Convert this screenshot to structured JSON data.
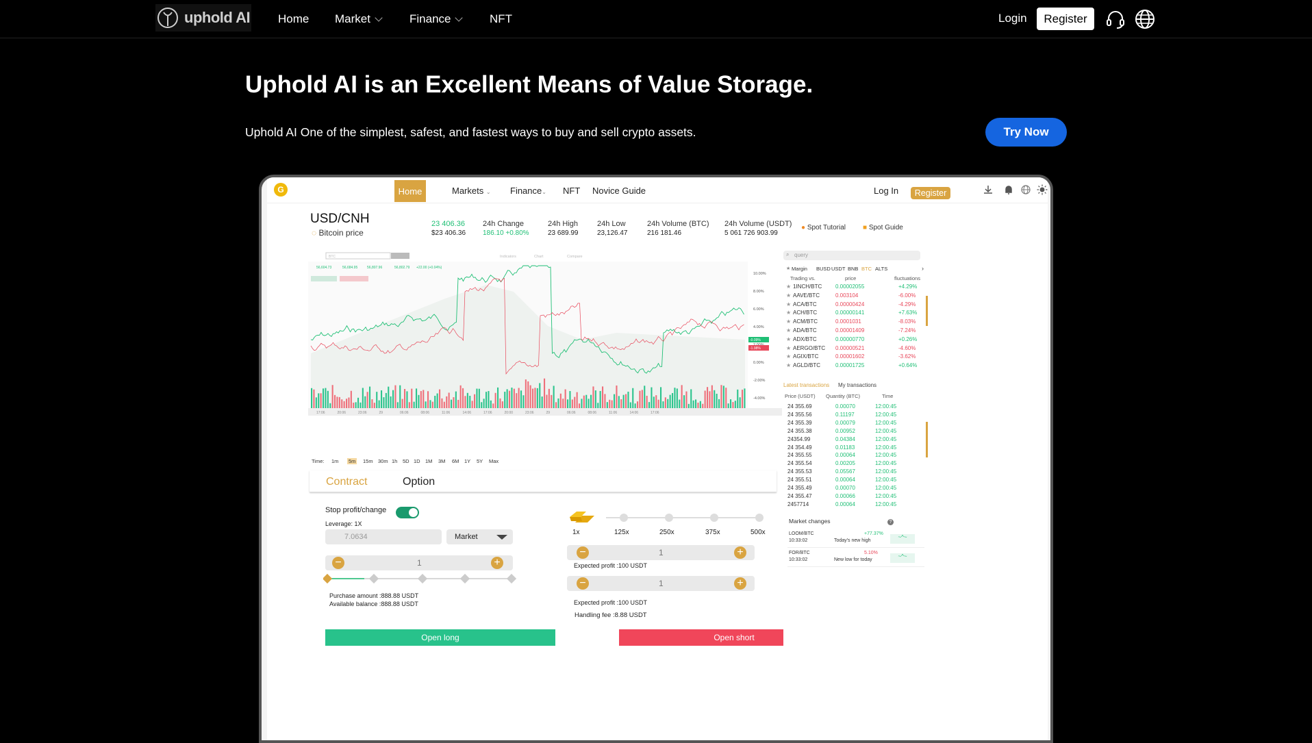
{
  "header": {
    "logo_text": "uphold AI",
    "nav": [
      {
        "label": "Home"
      },
      {
        "label": "Market"
      },
      {
        "label": "Finance"
      },
      {
        "label": "NFT"
      }
    ],
    "login": "Login",
    "register": "Register"
  },
  "hero": {
    "title": "Uphold AI is an Excellent Means of Value Storage.",
    "subtitle": "Uphold AI One of the simplest, safest, and fastest ways to buy and sell crypto assets.",
    "cta": "Try Now"
  },
  "mock": {
    "nav": {
      "coin": "G",
      "home": "Home",
      "markets": "Markets",
      "finance": "Finance",
      "nft": "NFT",
      "novice": "Novice Guide",
      "login": "Log In",
      "register": "Register"
    },
    "ticker": {
      "pair": "USD/CNH",
      "sub": "Bitcoin price",
      "price": "23 406.36",
      "price_sub": "$23 406.36",
      "change_label": "24h Change",
      "change_value": "186.10 +0.80%",
      "high_label": "24h High",
      "high_value": "23 689.99",
      "low_label": "24h Low",
      "low_value": "23,126.47",
      "vol_btc_label": "24h Volume (BTC)",
      "vol_btc_value": "216 181.46",
      "vol_usdt_label": "24h Volume (USDT)",
      "vol_usdt_value": "5 061 726 903.99",
      "spot_tutorial": "Spot Tutorial",
      "spot_guide": "Spot Guide"
    },
    "chart": {
      "y_ticks": [
        "10.00%",
        "8.00%",
        "6.00%",
        "4.00%",
        "2.00%",
        "0.00%",
        "-2.00%",
        "-4.00%"
      ],
      "x_ticks": [
        "17:06",
        "20:06",
        "23:06",
        "29",
        "06:06",
        "08:06",
        "11:06",
        "14:06",
        "17:06",
        "20:00",
        "23:06",
        "29",
        "06:06",
        "08:06",
        "11:06",
        "14:06",
        "17:06"
      ],
      "tag_up": "-0.09%",
      "tag_down": "-1.98%",
      "top_label_1": "BTC",
      "indicators": "Indicators",
      "chart": "Chart",
      "compare": "Compare",
      "legend_values": [
        "56,604.73",
        "56,684.95",
        "56,807.96",
        "56,802.79",
        "+22.00 (+0.04%)"
      ]
    },
    "time_buttons": [
      "Time:",
      "1m",
      "5m",
      "15m",
      "30m",
      "1h",
      "5D",
      "1D",
      "1M",
      "3M",
      "6M",
      "1Y",
      "5Y",
      "Max"
    ],
    "tabs": {
      "contract": "Contract",
      "option": "Option"
    },
    "left_form": {
      "stop": "Stop profit/change",
      "leverage": "Leverage: 1X",
      "price_placeholder": "7.0634",
      "order_type": "Market",
      "qty": "1",
      "purchase": "Purchase amount :888.88 USDT",
      "available": "Available balance :888.88 USDT",
      "open_long": "Open long"
    },
    "right_form": {
      "leverage_ticks": [
        "1x",
        "125x",
        "250x",
        "375x",
        "500x"
      ],
      "qty1": "1",
      "expected1": "Expected profit :100 USDT",
      "qty2": "1",
      "expected2": "Expected profit :100 USDT",
      "fee": "Handling fee :8.88 USDT",
      "open_short": "Open short"
    },
    "market_panel": {
      "search_placeholder": "query",
      "filters": [
        "Margin",
        "BUSD",
        "USDT",
        "BNB",
        "BTC",
        "ALTS"
      ],
      "headers": [
        "Trading vs.",
        "price",
        "fluctuations"
      ],
      "pairs": [
        {
          "pair": "1INCH/BTC",
          "price": "0.00002055",
          "change": "+4.29%",
          "up": true
        },
        {
          "pair": "AAVE/BTC",
          "price": "0.003104",
          "change": "-6.00%",
          "up": false
        },
        {
          "pair": "ACA/BTC",
          "price": "0.00000424",
          "change": "-4.29%",
          "up": false
        },
        {
          "pair": "ACH/BTC",
          "price": "0.00000141",
          "change": "+7.63%",
          "up": true
        },
        {
          "pair": "ACM/BTC",
          "price": "0.0001031",
          "change": "-8.03%",
          "up": false
        },
        {
          "pair": "ADA/BTC",
          "price": "0.00001409",
          "change": "-7.24%",
          "up": false
        },
        {
          "pair": "ADX/BTC",
          "price": "0.00000770",
          "change": "+0.26%",
          "up": true
        },
        {
          "pair": "AERGO/BTC",
          "price": "0.00000521",
          "change": "-4.60%",
          "up": false
        },
        {
          "pair": "AGIX/BTC",
          "price": "0.00001602",
          "change": "-3.62%",
          "up": false
        },
        {
          "pair": "AGLD/BTC",
          "price": "0.00001725",
          "change": "+0.64%",
          "up": true
        }
      ],
      "tx_tabs": [
        "Latest transactions",
        "My transactions"
      ],
      "tx_headers": [
        "Price (USDT)",
        "Quantity (BTC)",
        "Time"
      ],
      "transactions": [
        {
          "price": "24 355.69",
          "qty": "0.00070",
          "time": "12:00:45"
        },
        {
          "price": "24 355.56",
          "qty": "0.11197",
          "time": "12:00:45"
        },
        {
          "price": "24 355.39",
          "qty": "0.00079",
          "time": "12:00:45"
        },
        {
          "price": "24 355.38",
          "qty": "0.00952",
          "time": "12:00:45"
        },
        {
          "price": "24354.99",
          "qty": "0.04384",
          "time": "12:00:45"
        },
        {
          "price": "24 354.49",
          "qty": "0.01183",
          "time": "12:00:45"
        },
        {
          "price": "24 355.55",
          "qty": "0.00064",
          "time": "12:00:45"
        },
        {
          "price": "24 355.54",
          "qty": "0.00205",
          "time": "12:00:45"
        },
        {
          "price": "24 355.53",
          "qty": "0.05567",
          "time": "12:00:45"
        },
        {
          "price": "24 355.51",
          "qty": "0.00064",
          "time": "12:00:45"
        },
        {
          "price": "24 355.49",
          "qty": "0.00070",
          "time": "12:00:45"
        },
        {
          "price": "24 355.47",
          "qty": "0.00066",
          "time": "12:00:45"
        },
        {
          "price": "2457714",
          "qty": "0.00064",
          "time": "12:00:45"
        }
      ],
      "market_changes": "Market changes",
      "changes": [
        {
          "pair": "LOOM/BTC",
          "time": "10:33:02",
          "value": "+77.37%",
          "desc": "Today's new high"
        },
        {
          "pair": "FOR/BTC",
          "time": "10:33:02",
          "value": "5.10%",
          "desc": "New low for today"
        }
      ]
    }
  },
  "colors": {
    "accent": "#1565e0",
    "gold": "#d9a441",
    "green": "#28c28b",
    "red": "#f0465a"
  }
}
